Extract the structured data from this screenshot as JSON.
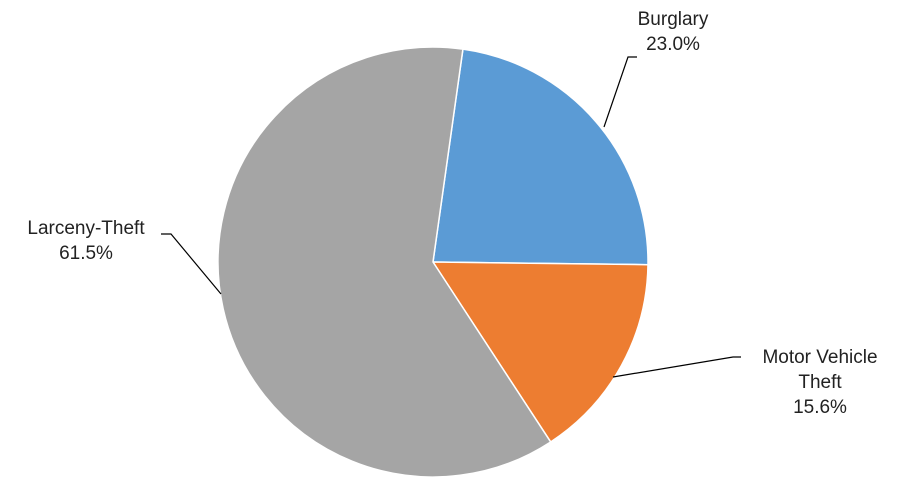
{
  "chart_data": {
    "type": "pie",
    "title": "",
    "start_angle_deg": 8,
    "direction": "clockwise",
    "legend": "none",
    "slices": [
      {
        "name": "Burglary",
        "label_lines": [
          "Burglary"
        ],
        "value": 23.0,
        "value_label": "23.0%",
        "color": "#5B9BD5"
      },
      {
        "name": "Motor Vehicle Theft",
        "label_lines": [
          "Motor Vehicle",
          "Theft"
        ],
        "value": 15.6,
        "value_label": "15.6%",
        "color": "#ED7D31"
      },
      {
        "name": "Larceny-Theft",
        "label_lines": [
          "Larceny-Theft"
        ],
        "value": 61.5,
        "value_label": "61.5%",
        "color": "#A5A5A5"
      }
    ]
  }
}
